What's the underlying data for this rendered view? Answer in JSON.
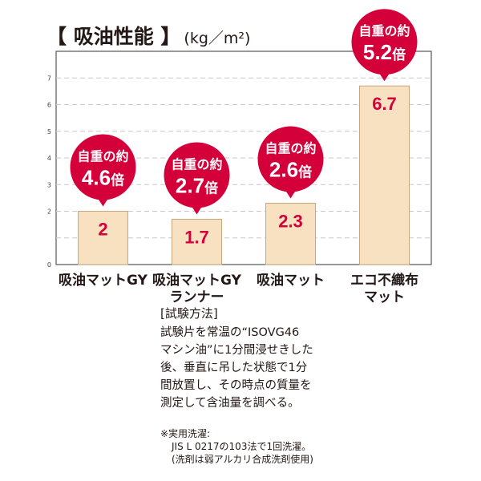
{
  "chart_data": {
    "type": "bar",
    "title": "【 吸油性能 】",
    "unit": "(kg／m²)",
    "categories": [
      [
        "吸油マットGY"
      ],
      [
        "吸油マットGY",
        "ランナー"
      ],
      [
        "吸油マット"
      ],
      [
        "エコ不織布",
        "マット"
      ]
    ],
    "values": [
      2,
      1.7,
      2.3,
      6.7
    ],
    "value_labels": [
      "2",
      "1.7",
      "2.3",
      "6.7"
    ],
    "ratio_labels": [
      {
        "line1": "自重の約",
        "number": "4.6",
        "suffix": "倍"
      },
      {
        "line1": "自重の約",
        "number": "2.7",
        "suffix": "倍"
      },
      {
        "line1": "自重の約",
        "number": "2.6",
        "suffix": "倍"
      },
      {
        "line1": "自重の約",
        "number": "5.2",
        "suffix": "倍"
      }
    ],
    "ylim": [
      0,
      8
    ],
    "yticks": [
      "0",
      "2",
      "3",
      "4",
      "5",
      "6",
      "7"
    ],
    "grid": true,
    "colors": {
      "bar_fill": "#f8e1c0",
      "bar_stroke": "#c8a77e",
      "value_text": "#d4003a",
      "bubble": "#d4003a",
      "bubble_text": "#ffffff",
      "grid": "#c8c8c8",
      "frame": "#555555"
    }
  },
  "test_method": {
    "heading": "[試験方法]",
    "lines": [
      "試験片を常温の“ISOVG46",
      "マシン油”に1分間浸せきした",
      "後、垂直に吊した状態で1分",
      "間放置し、その時点の質量を",
      "測定して含油量を調べる。"
    ]
  },
  "note": {
    "lines": [
      "※実用洗濯:",
      "JIS L 0217の103法で1回洗濯。",
      "(洗剤は弱アルカリ合成洗剤使用)"
    ]
  }
}
